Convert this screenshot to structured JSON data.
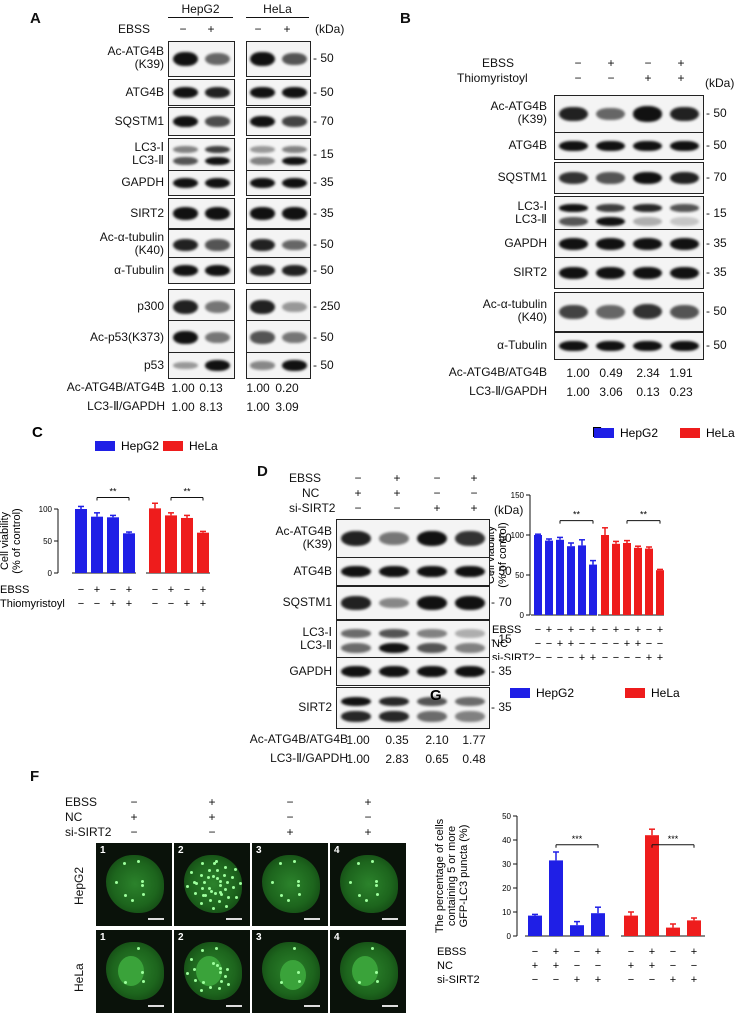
{
  "panelA": {
    "label": "A",
    "cell_lines": [
      "HepG2",
      "HeLa"
    ],
    "ebss_label": "EBSS",
    "ebss_signs": [
      "−",
      "+",
      "−",
      "+"
    ],
    "kda": "(kDa)",
    "rows": [
      {
        "label": "Ac-ATG4B\n(K39)",
        "kda": "50"
      },
      {
        "label": "ATG4B",
        "kda": "50"
      },
      {
        "label": "SQSTM1",
        "kda": "70"
      },
      {
        "label": "LC3-Ⅰ\nLC3-Ⅱ",
        "kda": "15"
      },
      {
        "label": "GAPDH",
        "kda": "35"
      },
      {
        "label": "SIRT2",
        "kda": "35"
      },
      {
        "label": "Ac-α-tubulin\n(K40)",
        "kda": "50"
      },
      {
        "label": "α-Tubulin",
        "kda": "50"
      },
      {
        "label": "p300",
        "kda": "250"
      },
      {
        "label": "Ac-p53(K373)",
        "kda": "50"
      },
      {
        "label": "p53",
        "kda": "50"
      }
    ],
    "quant": [
      {
        "label": "Ac-ATG4B/ATG4B",
        "values": [
          "1.00",
          "0.13",
          "1.00",
          "0.20"
        ]
      },
      {
        "label": "LC3-Ⅱ/GAPDH",
        "values": [
          "1.00",
          "8.13",
          "1.00",
          "3.09"
        ]
      }
    ]
  },
  "panelB": {
    "label": "B",
    "conditions": [
      {
        "label": "EBSS",
        "signs": [
          "−",
          "+",
          "−",
          "+"
        ]
      },
      {
        "label": "Thiomyristoyl",
        "signs": [
          "−",
          "−",
          "+",
          "+"
        ]
      }
    ],
    "kda": "(kDa)",
    "rows": [
      {
        "label": "Ac-ATG4B\n(K39)",
        "kda": "50"
      },
      {
        "label": "ATG4B",
        "kda": "50"
      },
      {
        "label": "SQSTM1",
        "kda": "70"
      },
      {
        "label": "LC3-Ⅰ\nLC3-Ⅱ",
        "kda": "15"
      },
      {
        "label": "GAPDH",
        "kda": "35"
      },
      {
        "label": "SIRT2",
        "kda": "35"
      },
      {
        "label": "Ac-α-tubulin\n(K40)",
        "kda": "50"
      },
      {
        "label": "α-Tubulin",
        "kda": "50"
      }
    ],
    "quant": [
      {
        "label": "Ac-ATG4B/ATG4B",
        "values": [
          "1.00",
          "0.49",
          "2.34",
          "1.91"
        ]
      },
      {
        "label": "LC3-Ⅱ/GAPDH",
        "values": [
          "1.00",
          "3.06",
          "0.13",
          "0.23"
        ]
      }
    ]
  },
  "panelD": {
    "label": "D",
    "conditions": [
      {
        "label": "EBSS",
        "signs": [
          "−",
          "+",
          "−",
          "+"
        ]
      },
      {
        "label": "NC",
        "signs": [
          "+",
          "+",
          "−",
          "−"
        ]
      },
      {
        "label": "si-SIRT2",
        "signs": [
          "−",
          "−",
          "+",
          "+"
        ]
      }
    ],
    "kda": "(kDa)",
    "rows": [
      {
        "label": "Ac-ATG4B\n(K39)",
        "kda": "50"
      },
      {
        "label": "ATG4B",
        "kda": "50"
      },
      {
        "label": "SQSTM1",
        "kda": "70"
      },
      {
        "label": "LC3-Ⅰ\nLC3-Ⅱ",
        "kda": "15"
      },
      {
        "label": "GAPDH",
        "kda": "35"
      },
      {
        "label": "SIRT2",
        "kda": "35"
      }
    ],
    "quant": [
      {
        "label": "Ac-ATG4B/ATG4B",
        "values": [
          "1.00",
          "0.35",
          "2.10",
          "1.77"
        ]
      },
      {
        "label": "LC3-Ⅱ/GAPDH",
        "values": [
          "1.00",
          "2.83",
          "0.65",
          "0.48"
        ]
      }
    ]
  },
  "panelF": {
    "label": "F",
    "conditions": [
      {
        "label": "EBSS",
        "signs": [
          "−",
          "+",
          "−",
          "+"
        ]
      },
      {
        "label": "NC",
        "signs": [
          "+",
          "+",
          "−",
          "−"
        ]
      },
      {
        "label": "si-SIRT2",
        "signs": [
          "−",
          "−",
          "+",
          "+"
        ]
      }
    ],
    "row_labels": [
      "HepG2",
      "HeLa"
    ],
    "image_numbers": [
      "1",
      "2",
      "3",
      "4"
    ]
  },
  "chart_data": [
    {
      "panel": "C",
      "type": "bar",
      "ylabel": "Cell viability\n(% of control)",
      "ylim": [
        0,
        100
      ],
      "yticks": [
        "0",
        "50",
        "100"
      ],
      "series": [
        {
          "name": "HepG2",
          "color": "#1f1fe6",
          "values": [
            100,
            88,
            87,
            62
          ],
          "errors": [
            4,
            6,
            3,
            2
          ]
        },
        {
          "name": "HeLa",
          "color": "#ee1c1c",
          "values": [
            101,
            90,
            86,
            63
          ],
          "errors": [
            8,
            4,
            4,
            2
          ]
        }
      ],
      "conditions": [
        {
          "label": "EBSS",
          "signs": [
            "−",
            "+",
            "−",
            "+"
          ]
        },
        {
          "label": "Thiomyristoyl",
          "signs": [
            "−",
            "−",
            "+",
            "+"
          ]
        }
      ],
      "significance": [
        "**",
        "**"
      ],
      "legend": "top"
    },
    {
      "panel": "E",
      "type": "bar",
      "ylabel": "Cell viability\n(% of control)",
      "ylim": [
        0,
        150
      ],
      "yticks": [
        "0",
        "50",
        "100",
        "150"
      ],
      "series": [
        {
          "name": "HepG2",
          "color": "#1f1fe6",
          "values": [
            100,
            93,
            94,
            86,
            87,
            63
          ],
          "errors": [
            1,
            2,
            3,
            4,
            7,
            5
          ]
        },
        {
          "name": "HeLa",
          "color": "#ee1c1c",
          "values": [
            100,
            89,
            90,
            84,
            83,
            56
          ],
          "errors": [
            9,
            3,
            3,
            2,
            2,
            1
          ]
        }
      ],
      "conditions": [
        {
          "label": "EBSS",
          "signs": [
            "−",
            "+",
            "−",
            "+",
            "−",
            "+"
          ]
        },
        {
          "label": "NC",
          "signs": [
            "−",
            "−",
            "+",
            "+",
            "−",
            "−"
          ]
        },
        {
          "label": "si-SIRT2",
          "signs": [
            "−",
            "−",
            "−",
            "−",
            "+",
            "+"
          ]
        }
      ],
      "significance": [
        "**",
        "**"
      ],
      "legend": "top"
    },
    {
      "panel": "G",
      "type": "bar",
      "ylabel": "The percentage of cells\ncontaining 5 or more\nGFP-LC3 puncta (%)",
      "ylim": [
        0,
        50
      ],
      "yticks": [
        "0",
        "10",
        "20",
        "30",
        "40",
        "50"
      ],
      "series": [
        {
          "name": "HepG2",
          "color": "#1f1fe6",
          "values": [
            8.5,
            31.5,
            4.5,
            9.5
          ],
          "errors": [
            0.5,
            3.5,
            1.5,
            2.5
          ]
        },
        {
          "name": "HeLa",
          "color": "#ee1c1c",
          "values": [
            8.5,
            42,
            3.5,
            6.5
          ],
          "errors": [
            1.5,
            2.5,
            1.5,
            1
          ]
        }
      ],
      "conditions": [
        {
          "label": "EBSS",
          "signs": [
            "−",
            "+",
            "−",
            "+"
          ]
        },
        {
          "label": "NC",
          "signs": [
            "+",
            "+",
            "−",
            "−"
          ]
        },
        {
          "label": "si-SIRT2",
          "signs": [
            "−",
            "−",
            "+",
            "+"
          ]
        }
      ],
      "significance": [
        "***",
        "***"
      ],
      "legend": "top"
    }
  ]
}
